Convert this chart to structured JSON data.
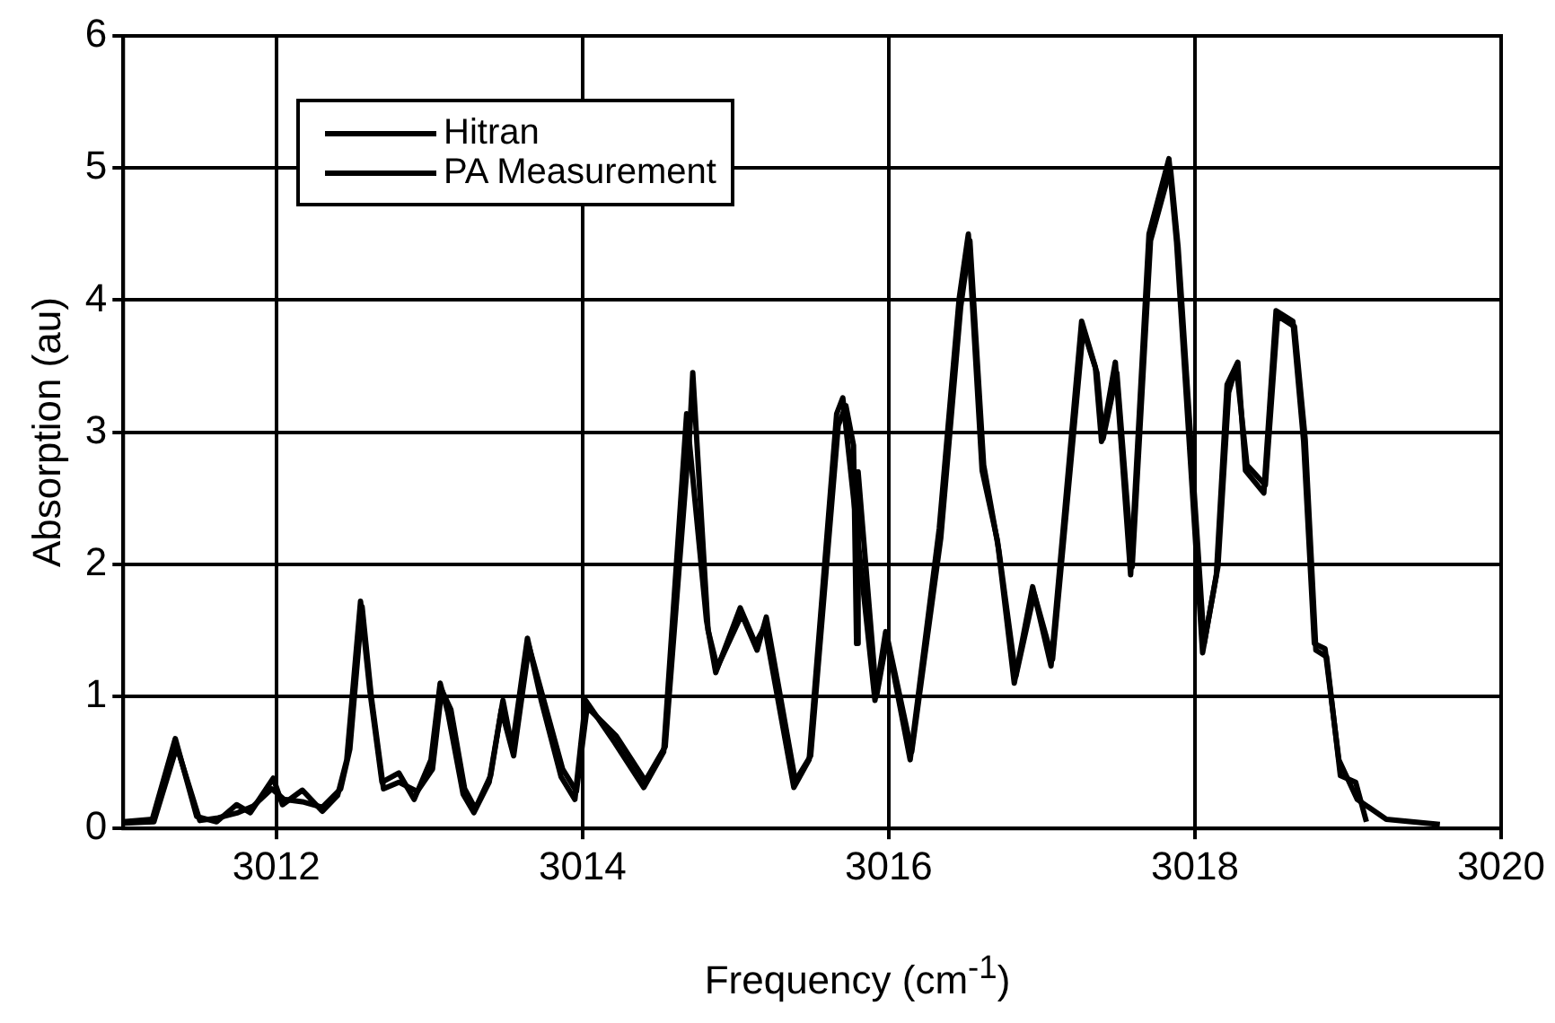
{
  "chart_data": {
    "type": "line",
    "xlabel": "Frequency (cm$^{-1}$)",
    "ylabel": "Absorption (au)",
    "xlim": [
      3011,
      3020
    ],
    "xticks": [
      3012,
      3014,
      3016,
      3018,
      3020
    ],
    "ylim": [
      0,
      6
    ],
    "yticks": [
      0,
      1,
      2,
      3,
      4,
      5,
      6
    ],
    "grid": true,
    "legend": "top left",
    "marker": "none",
    "line_style": "solid",
    "series": [
      {
        "name": "Hitran",
        "color": "#000000",
        "x": [
          3011.0,
          3011.19,
          3011.34,
          3011.48,
          3011.61,
          3011.74,
          3011.83,
          3011.98,
          3012.04,
          3012.17,
          3012.3,
          3012.4,
          3012.46,
          3012.55,
          3012.61,
          3012.69,
          3012.8,
          3012.9,
          3013.01,
          3013.07,
          3013.12,
          3013.22,
          3013.29,
          3013.39,
          3013.48,
          3013.54,
          3013.64,
          3013.73,
          3013.86,
          3013.95,
          3014.02,
          3014.21,
          3014.4,
          3014.53,
          3014.68,
          3014.81,
          3014.87,
          3015.03,
          3015.13,
          3015.19,
          3015.38,
          3015.48,
          3015.66,
          3015.7,
          3015.76,
          3015.91,
          3015.98,
          3016.14,
          3016.33,
          3016.46,
          3016.52,
          3016.61,
          3016.71,
          3016.82,
          3016.94,
          3017.06,
          3017.26,
          3017.35,
          3017.39,
          3017.48,
          3017.58,
          3017.7,
          3017.83,
          3017.88,
          3018.05,
          3018.14,
          3018.21,
          3018.28,
          3018.33,
          3018.45,
          3018.53,
          3018.64,
          3018.71,
          3018.78,
          3018.85,
          3018.94,
          3019.06,
          3019.25,
          3019.6
        ],
        "values": [
          0.05,
          0.07,
          0.68,
          0.09,
          0.05,
          0.18,
          0.12,
          0.38,
          0.18,
          0.29,
          0.13,
          0.25,
          0.52,
          1.72,
          1.05,
          0.35,
          0.42,
          0.22,
          0.52,
          1.1,
          0.88,
          0.26,
          0.12,
          0.35,
          0.97,
          0.61,
          1.44,
          0.97,
          0.39,
          0.22,
          0.97,
          0.65,
          0.31,
          0.58,
          3.14,
          1.57,
          1.18,
          1.67,
          1.4,
          1.53,
          0.31,
          0.52,
          3.14,
          3.26,
          2.61,
          0.97,
          1.49,
          0.52,
          2.27,
          4.01,
          4.5,
          2.71,
          2.18,
          1.1,
          1.83,
          1.23,
          3.84,
          3.49,
          2.93,
          3.53,
          1.92,
          4.5,
          5.07,
          4.44,
          1.33,
          1.92,
          3.36,
          3.53,
          2.71,
          2.54,
          3.92,
          3.84,
          2.93,
          1.4,
          1.36,
          0.52,
          0.22,
          0.07,
          0.03
        ]
      },
      {
        "name": "PA Measurement",
        "color": "#000000",
        "x": [
          3011.0,
          3011.2,
          3011.35,
          3011.5,
          3011.62,
          3011.75,
          3011.85,
          3011.97,
          3012.05,
          3012.18,
          3012.3,
          3012.42,
          3012.48,
          3012.56,
          3012.62,
          3012.7,
          3012.8,
          3012.92,
          3013.02,
          3013.08,
          3013.14,
          3013.23,
          3013.3,
          3013.4,
          3013.47,
          3013.55,
          3013.65,
          3013.74,
          3013.87,
          3013.96,
          3014.03,
          3014.22,
          3014.41,
          3014.54,
          3014.7,
          3014.72,
          3014.82,
          3014.88,
          3015.04,
          3015.14,
          3015.2,
          3015.39,
          3015.49,
          3015.67,
          3015.72,
          3015.77,
          3015.79,
          3015.8,
          3015.92,
          3015.99,
          3016.15,
          3016.34,
          3016.47,
          3016.53,
          3016.62,
          3016.72,
          3016.83,
          3016.95,
          3017.07,
          3017.27,
          3017.36,
          3017.4,
          3017.49,
          3017.59,
          3017.71,
          3017.84,
          3017.89,
          3018.06,
          3018.15,
          3018.22,
          3018.27,
          3018.34,
          3018.46,
          3018.54,
          3018.65,
          3018.72,
          3018.79,
          3018.86,
          3018.95,
          3019.05,
          3019.12
        ],
        "values": [
          0.04,
          0.05,
          0.62,
          0.06,
          0.08,
          0.12,
          0.17,
          0.3,
          0.22,
          0.2,
          0.16,
          0.3,
          0.6,
          1.68,
          1.0,
          0.3,
          0.35,
          0.28,
          0.45,
          1.05,
          0.9,
          0.3,
          0.15,
          0.4,
          0.9,
          0.55,
          1.38,
          1.0,
          0.45,
          0.28,
          0.92,
          0.7,
          0.36,
          0.62,
          3.0,
          3.45,
          1.5,
          1.22,
          1.62,
          1.35,
          1.6,
          0.36,
          0.55,
          3.05,
          3.2,
          2.9,
          1.4,
          2.7,
          1.0,
          1.45,
          0.58,
          2.2,
          3.95,
          4.45,
          2.75,
          2.1,
          1.15,
          1.78,
          1.28,
          3.78,
          3.45,
          2.95,
          3.45,
          1.98,
          4.45,
          5.0,
          4.4,
          1.4,
          1.98,
          3.3,
          3.5,
          2.75,
          2.6,
          3.88,
          3.8,
          2.95,
          1.35,
          1.3,
          0.4,
          0.35,
          0.05
        ]
      }
    ]
  }
}
